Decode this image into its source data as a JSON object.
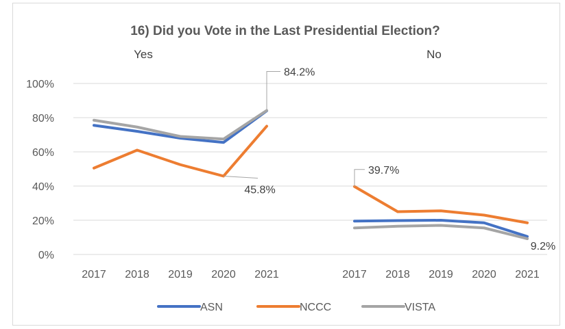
{
  "chart_data": {
    "type": "line",
    "title": "16) Did you Vote in the Last Presidential Election?",
    "groups": [
      "Yes",
      "No"
    ],
    "x": [
      "2017",
      "2018",
      "2019",
      "2020",
      "2021"
    ],
    "ylim": [
      0,
      100
    ],
    "ytick_labels": [
      "0%",
      "20%",
      "40%",
      "60%",
      "80%",
      "100%"
    ],
    "grid": true,
    "legend_position": "bottom",
    "series": [
      {
        "name": "ASN",
        "color": "#4472c4",
        "values": {
          "Yes": [
            75.5,
            72.0,
            68.0,
            65.5,
            84.0
          ],
          "No": [
            19.5,
            19.8,
            20.0,
            18.5,
            10.5
          ]
        }
      },
      {
        "name": "NCCC",
        "color": "#ed7d31",
        "values": {
          "Yes": [
            50.5,
            61.0,
            52.5,
            45.8,
            75.0
          ],
          "No": [
            39.7,
            25.0,
            25.5,
            23.0,
            18.5
          ]
        }
      },
      {
        "name": "VISTA",
        "color": "#a5a5a5",
        "values": {
          "Yes": [
            78.5,
            74.5,
            69.0,
            67.5,
            84.2
          ],
          "No": [
            15.5,
            16.5,
            17.0,
            15.5,
            9.2
          ]
        }
      }
    ],
    "annotations": [
      {
        "text": "84.2%",
        "series": "VISTA",
        "group": "Yes",
        "x": "2021"
      },
      {
        "text": "45.8%",
        "series": "NCCC",
        "group": "Yes",
        "x": "2020"
      },
      {
        "text": "39.7%",
        "series": "NCCC",
        "group": "No",
        "x": "2017"
      },
      {
        "text": "9.2%",
        "series": "VISTA",
        "group": "No",
        "x": "2021"
      }
    ]
  }
}
